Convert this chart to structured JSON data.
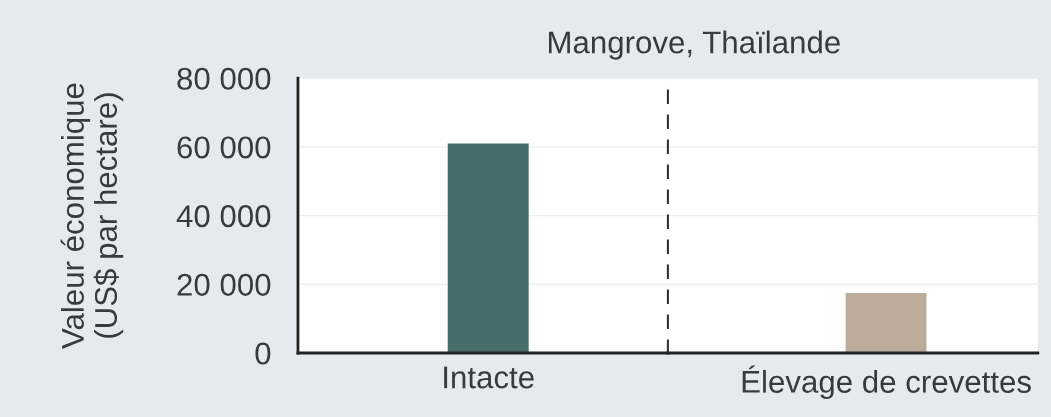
{
  "chart_data": [
    {
      "type": "bar",
      "title": "Mangrove, Thaïlande",
      "ylabel": "Valeur économique\n(US$ par hectare)",
      "categories": [
        "Intacte"
      ],
      "values": [
        61000
      ],
      "colors": [
        "#466d6b"
      ],
      "ylim": [
        0,
        80000
      ],
      "yticks": [
        0,
        {
          "value": 20000,
          "label": "20 000"
        },
        {
          "value": 40000,
          "label": "40 000"
        },
        {
          "value": 60000,
          "label": "60 000"
        },
        {
          "value": 80000,
          "label": "80 000"
        }
      ],
      "grid": "y"
    },
    {
      "type": "bar",
      "categories": [
        "Élevage de crevettes"
      ],
      "values": [
        17500
      ],
      "colors": [
        "#bbad9a"
      ],
      "ylim": [
        0,
        80000
      ],
      "grid": "y",
      "tick_labels": "x"
    }
  ]
}
